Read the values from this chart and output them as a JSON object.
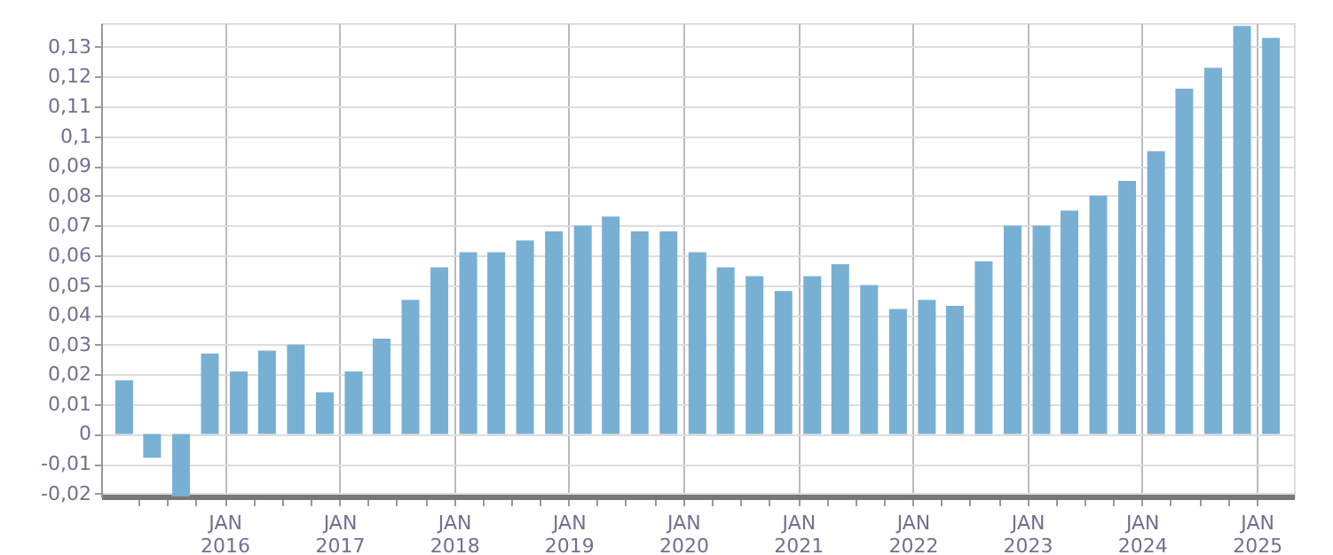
{
  "chart_data": {
    "type": "bar",
    "x": [
      "2015-02-15",
      "2015-05-15",
      "2015-08-15",
      "2015-11-15",
      "2016-02-15",
      "2016-05-15",
      "2016-08-15",
      "2016-11-15",
      "2017-02-15",
      "2017-05-15",
      "2017-08-15",
      "2017-11-15",
      "2018-02-15",
      "2018-05-15",
      "2018-08-15",
      "2018-11-15",
      "2019-02-15",
      "2019-05-15",
      "2019-08-15",
      "2019-11-15",
      "2020-02-15",
      "2020-05-15",
      "2020-08-15",
      "2020-11-15",
      "2021-02-15",
      "2021-05-15",
      "2021-08-15",
      "2021-11-15",
      "2022-02-15",
      "2022-05-15",
      "2022-08-15",
      "2022-11-15",
      "2023-02-15",
      "2023-05-15",
      "2023-08-15",
      "2023-11-15",
      "2024-02-15",
      "2024-05-15",
      "2024-08-15",
      "2024-11-15",
      "2025-02-15"
    ],
    "values": [
      0.018,
      -0.008,
      -0.021,
      0.027,
      0.021,
      0.028,
      0.03,
      0.014,
      0.021,
      0.032,
      0.045,
      0.056,
      0.061,
      0.061,
      0.065,
      0.068,
      0.07,
      0.073,
      0.068,
      0.068,
      0.061,
      0.056,
      0.053,
      0.048,
      0.053,
      0.057,
      0.05,
      0.042,
      0.045,
      0.043,
      0.058,
      0.07,
      0.07,
      0.075,
      0.08,
      0.085,
      0.095,
      0.116,
      0.123,
      0.137,
      0.133
    ],
    "color": "#78b0d3",
    "xlim": [
      "2015-01",
      "2025-04"
    ],
    "xticks": [
      {
        "value": "2015-04",
        "label": null
      },
      {
        "value": "2015-07",
        "label": null
      },
      {
        "value": "2015-10",
        "label": null
      },
      {
        "value": "2016-01",
        "label": "JAN 2016"
      },
      {
        "value": "2016-04",
        "label": null
      },
      {
        "value": "2016-07",
        "label": null
      },
      {
        "value": "2016-10",
        "label": null
      },
      {
        "value": "2017-01",
        "label": "JAN 2017"
      },
      {
        "value": "2017-04",
        "label": null
      },
      {
        "value": "2017-07",
        "label": null
      },
      {
        "value": "2017-10",
        "label": null
      },
      {
        "value": "2018-01",
        "label": "JAN 2018"
      },
      {
        "value": "2018-04",
        "label": null
      },
      {
        "value": "2018-07",
        "label": null
      },
      {
        "value": "2018-10",
        "label": null
      },
      {
        "value": "2019-01",
        "label": "JAN 2019"
      },
      {
        "value": "2019-04",
        "label": null
      },
      {
        "value": "2019-07",
        "label": null
      },
      {
        "value": "2019-10",
        "label": null
      },
      {
        "value": "2020-01",
        "label": "JAN 2020"
      },
      {
        "value": "2020-04",
        "label": null
      },
      {
        "value": "2020-07",
        "label": null
      },
      {
        "value": "2020-10",
        "label": null
      },
      {
        "value": "2021-01",
        "label": "JAN 2021"
      },
      {
        "value": "2021-04",
        "label": null
      },
      {
        "value": "2021-07",
        "label": null
      },
      {
        "value": "2021-10",
        "label": null
      },
      {
        "value": "2022-01",
        "label": "JAN 2022"
      },
      {
        "value": "2022-04",
        "label": null
      },
      {
        "value": "2022-07",
        "label": null
      },
      {
        "value": "2022-10",
        "label": null
      },
      {
        "value": "2023-01",
        "label": "JAN 2023"
      },
      {
        "value": "2023-04",
        "label": null
      },
      {
        "value": "2023-07",
        "label": null
      },
      {
        "value": "2023-10",
        "label": null
      },
      {
        "value": "2024-01",
        "label": "JAN 2024"
      },
      {
        "value": "2024-04",
        "label": null
      },
      {
        "value": "2024-07",
        "label": null
      },
      {
        "value": "2024-10",
        "label": null
      },
      {
        "value": "2025-01",
        "label": "JAN 2025"
      }
    ],
    "ylim": [
      -0.021,
      0.138
    ],
    "yticks": [
      {
        "value": -0.02,
        "label": "-0,02"
      },
      {
        "value": -0.01,
        "label": "-0,01"
      },
      0,
      {
        "value": 0.01,
        "label": "0,01"
      },
      {
        "value": 0.02,
        "label": "0,02"
      },
      {
        "value": 0.03,
        "label": "0,03"
      },
      {
        "value": 0.04,
        "label": "0,04"
      },
      {
        "value": 0.05,
        "label": "0,05"
      },
      {
        "value": 0.06,
        "label": "0,06"
      },
      {
        "value": 0.07,
        "label": "0,07"
      },
      {
        "value": 0.08,
        "label": "0,08"
      },
      {
        "value": 0.09,
        "label": "0,09"
      },
      {
        "value": 0.1,
        "label": "0,1"
      },
      {
        "value": 0.11,
        "label": "0,11"
      },
      {
        "value": 0.12,
        "label": "0,12"
      },
      {
        "value": 0.13,
        "label": "0,13"
      }
    ],
    "grid": true
  }
}
